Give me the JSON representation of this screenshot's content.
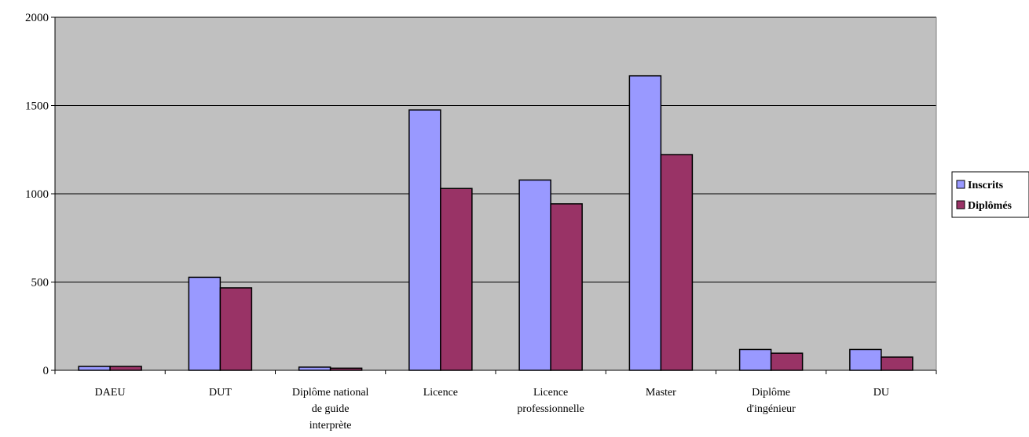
{
  "chart_data": {
    "type": "bar",
    "title": "",
    "xlabel": "",
    "ylabel": "",
    "ylim": [
      0,
      2000
    ],
    "yticks": [
      0,
      500,
      1000,
      1500,
      2000
    ],
    "yticks_labels": [
      "0",
      "500",
      "1000",
      "1500",
      "2000"
    ],
    "grid": true,
    "legend_position": "right",
    "categories": [
      [
        "DAEU"
      ],
      [
        "DUT"
      ],
      [
        "Diplôme national",
        "de guide",
        "interprète"
      ],
      [
        "Licence"
      ],
      [
        "Licence",
        "professionnelle"
      ],
      [
        "Master"
      ],
      [
        "Diplôme",
        "d'ingénieur"
      ],
      [
        "DU"
      ]
    ],
    "series": [
      {
        "name": "Inscrits",
        "color": "#9999ff",
        "values": [
          22,
          527,
          18,
          1475,
          1078,
          1668,
          118,
          118
        ]
      },
      {
        "name": "Diplômés",
        "color": "#993366",
        "values": [
          22,
          467,
          12,
          1030,
          943,
          1222,
          97,
          75
        ]
      }
    ],
    "colors": {
      "plot_background": "#c0c0c0",
      "gridline": "#000000",
      "bar_border": "#000000"
    }
  }
}
